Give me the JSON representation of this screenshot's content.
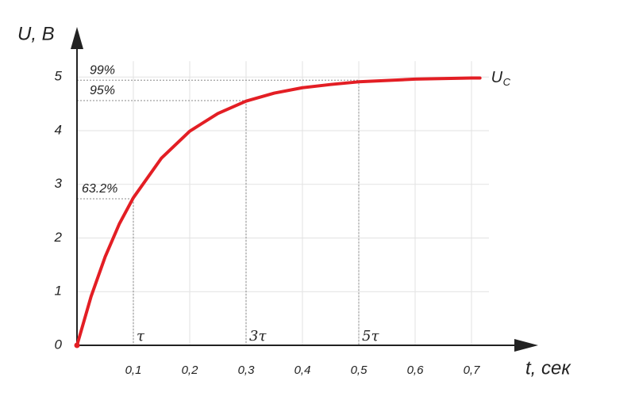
{
  "chart_data": {
    "type": "line",
    "x_label": "t, сек",
    "y_label": "U, В",
    "x": [
      0,
      0.025,
      0.05,
      0.075,
      0.1,
      0.15,
      0.2,
      0.25,
      0.3,
      0.35,
      0.4,
      0.45,
      0.5,
      0.6,
      0.7,
      0.715
    ],
    "series": [
      {
        "name": "U",
        "name_sub": "C",
        "color": "#e31e24",
        "values": [
          0,
          0.91,
          1.65,
          2.26,
          2.75,
          3.49,
          3.99,
          4.32,
          4.55,
          4.7,
          4.8,
          4.86,
          4.91,
          4.96,
          4.98,
          4.98
        ]
      }
    ],
    "xlim": [
      0,
      0.8
    ],
    "ylim": [
      0,
      5.8
    ],
    "xticks": [
      {
        "value": 0.1,
        "label": "0,1"
      },
      {
        "value": 0.2,
        "label": "0,2"
      },
      {
        "value": 0.3,
        "label": "0,3"
      },
      {
        "value": 0.4,
        "label": "0,4"
      },
      {
        "value": 0.5,
        "label": "0,5"
      },
      {
        "value": 0.6,
        "label": "0,6"
      },
      {
        "value": 0.7,
        "label": "0,7"
      }
    ],
    "yticks": [
      0,
      1,
      2,
      3,
      4,
      5
    ],
    "grid": true,
    "annotations": [
      {
        "label": "63.2%",
        "tau_label": "τ",
        "x": 0.1,
        "y": 2.73
      },
      {
        "label": "95%",
        "tau_label": "3τ",
        "x": 0.3,
        "y": 4.56
      },
      {
        "label": "99%",
        "tau_label": "5τ",
        "x": 0.5,
        "y": 4.94
      }
    ]
  }
}
